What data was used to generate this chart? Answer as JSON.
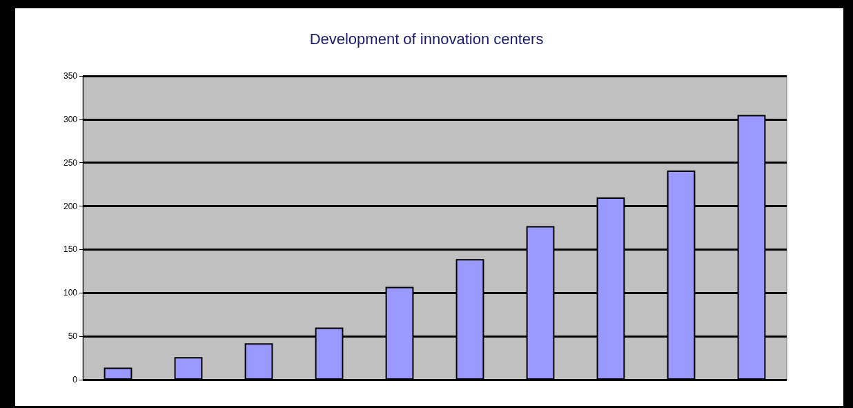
{
  "chart_data": {
    "type": "bar",
    "title": "Development of innovation centers",
    "categories": [
      null,
      null,
      null,
      null,
      null,
      null,
      null,
      null,
      null,
      null
    ],
    "values": [
      14,
      26,
      42,
      60,
      107,
      139,
      177,
      210,
      241,
      305
    ],
    "color": "#9999ff",
    "ylim": [
      0,
      350
    ],
    "yticks": [
      0,
      50,
      100,
      150,
      200,
      250,
      300,
      350
    ],
    "grid": "y",
    "tick_labels": "y"
  }
}
